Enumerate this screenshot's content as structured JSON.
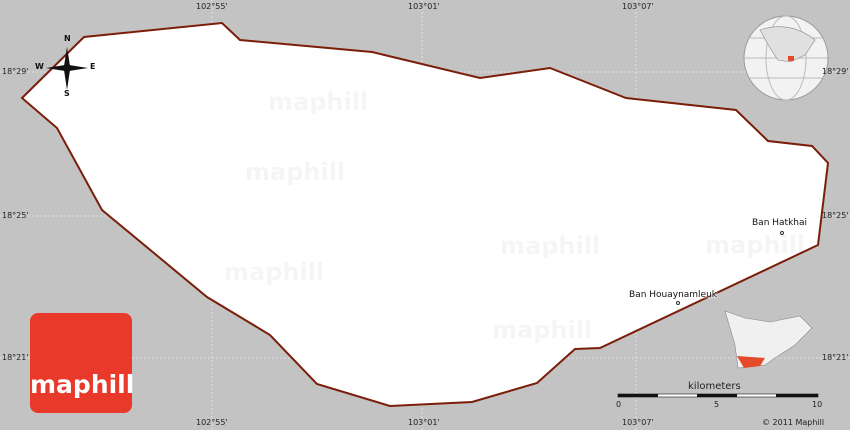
{
  "map": {
    "colors": {
      "background": "#c3c3c3",
      "region_fill": "#ffffff",
      "border": "#7a1e0a",
      "logo": "#e8392a",
      "highlight": "#e24a2a"
    },
    "longitude_labels": [
      "102°55'",
      "103°01'",
      "103°07'"
    ],
    "latitude_labels": [
      "18°29'",
      "18°25'",
      "18°21'"
    ],
    "towns": [
      {
        "name": "Ban Hatkhai"
      },
      {
        "name": "Ban Houaynamleuk"
      }
    ],
    "compass": {
      "n": "N",
      "s": "S",
      "e": "E",
      "w": "W"
    },
    "scale": {
      "unit": "kilometers",
      "ticks": [
        "0",
        "5",
        "10"
      ]
    },
    "copyright": "© 2011 Maphill",
    "logo_text": "maphill",
    "watermark": "maphill",
    "icons": [
      "compass-rose-icon",
      "globe-locator-icon",
      "inset-locator-map"
    ]
  }
}
